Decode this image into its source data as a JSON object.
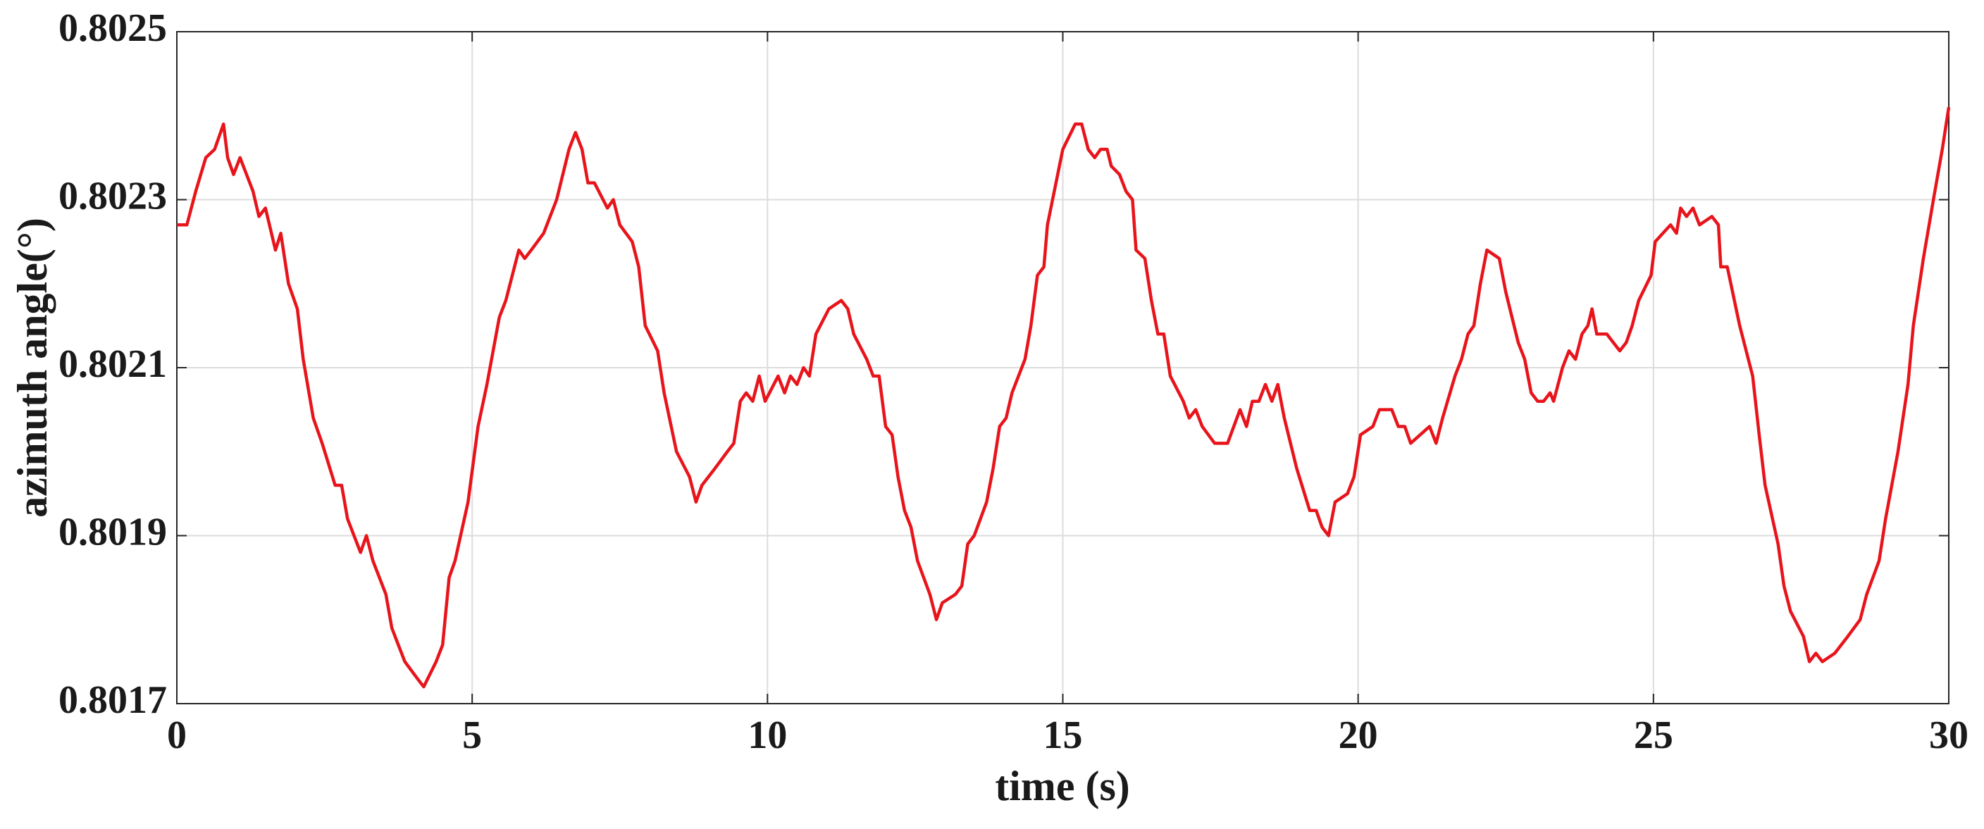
{
  "chart_data": {
    "type": "line",
    "xlabel": "time (s)",
    "ylabel": "azimuth angle(°)",
    "xlim": [
      0,
      30
    ],
    "xticks": [
      0,
      5,
      10,
      15,
      20,
      25,
      30
    ],
    "ylim": [
      0.8017,
      0.8025
    ],
    "yticks": [
      0.8017,
      0.8019,
      0.8021,
      0.8023,
      0.8025
    ],
    "grid": true,
    "color": "#e8141b",
    "x": [
      0,
      0.17,
      0.32,
      0.49,
      0.64,
      0.79,
      0.86,
      0.96,
      1.07,
      1.29,
      1.39,
      1.5,
      1.67,
      1.76,
      1.89,
      2.04,
      2.14,
      2.31,
      2.46,
      2.68,
      2.79,
      2.89,
      3.11,
      3.21,
      3.32,
      3.54,
      3.64,
      3.86,
      4.07,
      4.18,
      4.39,
      4.5,
      4.61,
      4.71,
      4.93,
      5.1,
      5.25,
      5.46,
      5.57,
      5.68,
      5.79,
      5.89,
      6,
      6.21,
      6.43,
      6.64,
      6.75,
      6.86,
      6.96,
      7.07,
      7.29,
      7.39,
      7.5,
      7.71,
      7.82,
      7.93,
      8.14,
      8.25,
      8.46,
      8.68,
      8.79,
      8.89,
      9.11,
      9.32,
      9.43,
      9.54,
      9.64,
      9.75,
      9.86,
      9.96,
      10.18,
      10.29,
      10.39,
      10.5,
      10.61,
      10.71,
      10.82,
      11.04,
      11.25,
      11.36,
      11.46,
      11.68,
      11.79,
      11.89,
      12,
      12.11,
      12.21,
      12.32,
      12.43,
      12.54,
      12.75,
      12.86,
      12.96,
      13.18,
      13.29,
      13.39,
      13.5,
      13.71,
      13.82,
      13.93,
      14.04,
      14.14,
      14.36,
      14.46,
      14.57,
      14.68,
      14.74,
      15,
      15.21,
      15.32,
      15.43,
      15.54,
      15.64,
      15.75,
      15.82,
      15.96,
      16.07,
      16.18,
      16.24,
      16.39,
      16.5,
      16.61,
      16.71,
      16.82,
      17.04,
      17.14,
      17.25,
      17.36,
      17.57,
      17.68,
      17.79,
      18,
      18.11,
      18.21,
      18.32,
      18.43,
      18.54,
      18.64,
      18.75,
      18.96,
      19.18,
      19.29,
      19.39,
      19.5,
      19.61,
      19.82,
      19.93,
      20.04,
      20.25,
      20.36,
      20.57,
      20.68,
      20.79,
      20.89,
      21.21,
      21.32,
      21.43,
      21.64,
      21.75,
      21.86,
      21.96,
      22.07,
      22.18,
      22.39,
      22.5,
      22.71,
      22.82,
      22.93,
      23.04,
      23.14,
      23.25,
      23.31,
      23.46,
      23.57,
      23.68,
      23.79,
      23.89,
      23.96,
      24.04,
      24.21,
      24.43,
      24.54,
      24.64,
      24.75,
      24.96,
      25.03,
      25.29,
      25.39,
      25.46,
      25.56,
      25.67,
      25.78,
      25.99,
      26.1,
      26.14,
      26.25,
      26.46,
      26.68,
      26.79,
      26.89,
      27.11,
      27.21,
      27.32,
      27.54,
      27.64,
      27.75,
      27.86,
      28.07,
      28.29,
      28.5,
      28.61,
      28.82,
      28.93,
      29.14,
      29.31,
      29.4,
      29.57,
      29.74,
      29.89,
      30
    ],
    "values": [
      0.80227,
      0.80227,
      0.80231,
      0.80235,
      0.80236,
      0.80239,
      0.80235,
      0.80233,
      0.80235,
      0.80231,
      0.80228,
      0.80229,
      0.80224,
      0.80226,
      0.8022,
      0.80217,
      0.80211,
      0.80204,
      0.80201,
      0.80196,
      0.80196,
      0.80192,
      0.80188,
      0.8019,
      0.80187,
      0.80183,
      0.80179,
      0.80175,
      0.80173,
      0.80172,
      0.80175,
      0.80177,
      0.80185,
      0.80187,
      0.80194,
      0.80203,
      0.80208,
      0.80216,
      0.80218,
      0.80221,
      0.80224,
      0.80223,
      0.80224,
      0.80226,
      0.8023,
      0.80236,
      0.80238,
      0.80236,
      0.80232,
      0.80232,
      0.80229,
      0.8023,
      0.80227,
      0.80225,
      0.80222,
      0.80215,
      0.80212,
      0.80207,
      0.802,
      0.80197,
      0.80194,
      0.80196,
      0.80198,
      0.802,
      0.80201,
      0.80206,
      0.80207,
      0.80206,
      0.80209,
      0.80206,
      0.80209,
      0.80207,
      0.80209,
      0.80208,
      0.8021,
      0.80209,
      0.80214,
      0.80217,
      0.80218,
      0.80217,
      0.80214,
      0.80211,
      0.80209,
      0.80209,
      0.80203,
      0.80202,
      0.80197,
      0.80193,
      0.80191,
      0.80187,
      0.80183,
      0.8018,
      0.80182,
      0.80183,
      0.80184,
      0.80189,
      0.8019,
      0.80194,
      0.80198,
      0.80203,
      0.80204,
      0.80207,
      0.80211,
      0.80215,
      0.80221,
      0.80222,
      0.80227,
      0.80236,
      0.80239,
      0.80239,
      0.80236,
      0.80235,
      0.80236,
      0.80236,
      0.80234,
      0.80233,
      0.80231,
      0.8023,
      0.80224,
      0.80223,
      0.80218,
      0.80214,
      0.80214,
      0.80209,
      0.80206,
      0.80204,
      0.80205,
      0.80203,
      0.80201,
      0.80201,
      0.80201,
      0.80205,
      0.80203,
      0.80206,
      0.80206,
      0.80208,
      0.80206,
      0.80208,
      0.80204,
      0.80198,
      0.80193,
      0.80193,
      0.80191,
      0.8019,
      0.80194,
      0.80195,
      0.80197,
      0.80202,
      0.80203,
      0.80205,
      0.80205,
      0.80203,
      0.80203,
      0.80201,
      0.80203,
      0.80201,
      0.80204,
      0.80209,
      0.80211,
      0.80214,
      0.80215,
      0.8022,
      0.80224,
      0.80223,
      0.80219,
      0.80213,
      0.80211,
      0.80207,
      0.80206,
      0.80206,
      0.80207,
      0.80206,
      0.8021,
      0.80212,
      0.80211,
      0.80214,
      0.80215,
      0.80217,
      0.80214,
      0.80214,
      0.80212,
      0.80213,
      0.80215,
      0.80218,
      0.80221,
      0.80225,
      0.80227,
      0.80226,
      0.80229,
      0.80228,
      0.80229,
      0.80227,
      0.80228,
      0.80227,
      0.80222,
      0.80222,
      0.80215,
      0.80209,
      0.80202,
      0.80196,
      0.80189,
      0.80184,
      0.80181,
      0.80178,
      0.80175,
      0.80176,
      0.80175,
      0.80176,
      0.80178,
      0.8018,
      0.80183,
      0.80187,
      0.80192,
      0.802,
      0.80208,
      0.80215,
      0.80223,
      0.8023,
      0.80236,
      0.80241
    ]
  }
}
